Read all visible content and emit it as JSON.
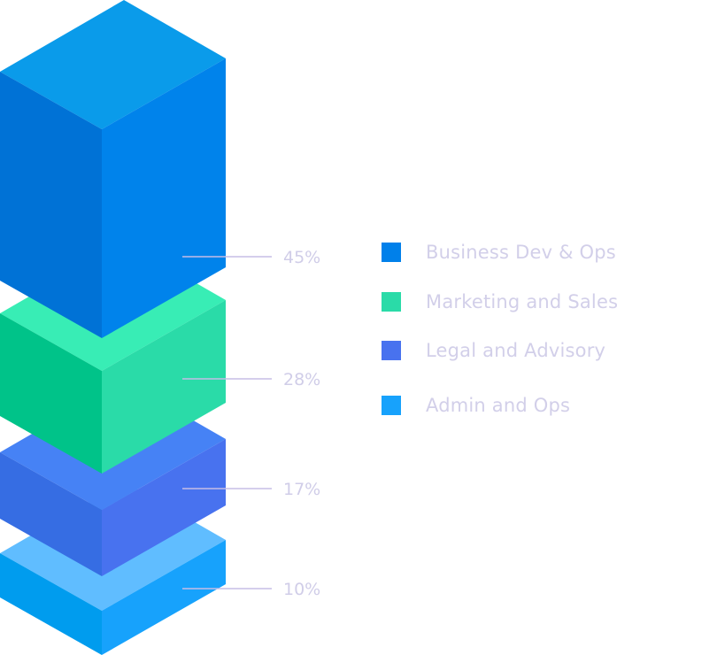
{
  "chart_data": {
    "type": "stacked-isometric-blocks",
    "series": [
      {
        "name": "Business Dev & Ops",
        "value": 45,
        "label": "45%",
        "colors": {
          "top": "#0A9BEA",
          "left": "#0072D6",
          "right": "#0083EB",
          "legend": "#0080EA"
        }
      },
      {
        "name": "Marketing and Sales",
        "value": 28,
        "label": "28%",
        "colors": {
          "top": "#38EDB5",
          "left": "#00C389",
          "right": "#2ADBA8",
          "legend": "#2ADBA8"
        }
      },
      {
        "name": "Legal and Advisory",
        "value": 17,
        "label": "17%",
        "colors": {
          "top": "#4682F5",
          "left": "#366DE3",
          "right": "#4872EF",
          "legend": "#4872EF"
        }
      },
      {
        "name": "Admin and Ops",
        "value": 10,
        "label": "10%",
        "colors": {
          "top": "#60BDFF",
          "left": "#009CEE",
          "right": "#17A2FC",
          "legend": "#17A2FC"
        }
      }
    ],
    "legend_placement": "right",
    "label_color": "#D0CDE8",
    "leader_color": "#C5BDE6"
  }
}
